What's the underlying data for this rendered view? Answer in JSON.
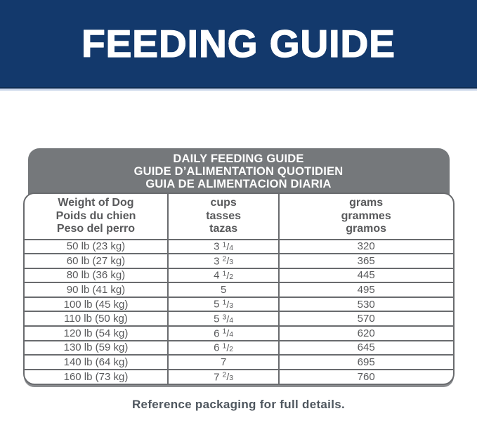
{
  "banner": {
    "title": "FEEDING GUIDE"
  },
  "table": {
    "title_lines": [
      "DAILY FEEDING GUIDE",
      "GUIDE D’ALIMENTATION QUOTIDIEN",
      "GUIA DE ALIMENTACION DIARIA"
    ],
    "columns": [
      {
        "id": "weight",
        "lines": [
          "Weight of Dog",
          "Poids du chien",
          "Peso del perro"
        ]
      },
      {
        "id": "cups",
        "lines": [
          "cups",
          "tasses",
          "tazas"
        ]
      },
      {
        "id": "grams",
        "lines": [
          "grams",
          "grammes",
          "gramos"
        ]
      }
    ],
    "rows": [
      {
        "weight": "50 lb (23 kg)",
        "cups": {
          "whole": "3",
          "num": "1",
          "den": "4"
        },
        "grams": "320"
      },
      {
        "weight": "60 lb (27 kg)",
        "cups": {
          "whole": "3",
          "num": "2",
          "den": "3"
        },
        "grams": "365"
      },
      {
        "weight": "80 lb (36 kg)",
        "cups": {
          "whole": "4",
          "num": "1",
          "den": "2"
        },
        "grams": "445"
      },
      {
        "weight": "90 lb (41 kg)",
        "cups": {
          "whole": "5"
        },
        "grams": "495"
      },
      {
        "weight": "100 lb (45 kg)",
        "cups": {
          "whole": "5",
          "num": "1",
          "den": "3"
        },
        "grams": "530"
      },
      {
        "weight": "110 lb (50 kg)",
        "cups": {
          "whole": "5",
          "num": "3",
          "den": "4"
        },
        "grams": "570"
      },
      {
        "weight": "120 lb (54 kg)",
        "cups": {
          "whole": "6",
          "num": "1",
          "den": "4"
        },
        "grams": "620"
      },
      {
        "weight": "130 lb (59 kg)",
        "cups": {
          "whole": "6",
          "num": "1",
          "den": "2"
        },
        "grams": "645"
      },
      {
        "weight": "140 lb (64 kg)",
        "cups": {
          "whole": "7"
        },
        "grams": "695"
      },
      {
        "weight": "160 lb (73 kg)",
        "cups": {
          "whole": "7",
          "num": "2",
          "den": "3"
        },
        "grams": "760"
      }
    ]
  },
  "footer": {
    "note": "Reference packaging for full details."
  },
  "colors": {
    "banner_bg": "#13396C",
    "banner_edge": "#0D2B52",
    "banner_underline": "#CCD7EA",
    "banner_text": "#FFFFFF",
    "header_bg": "#75787B",
    "header_text": "#FFFFFF",
    "border": "#696B6E",
    "text": "#58595B",
    "footer_text": "#4E565E"
  }
}
